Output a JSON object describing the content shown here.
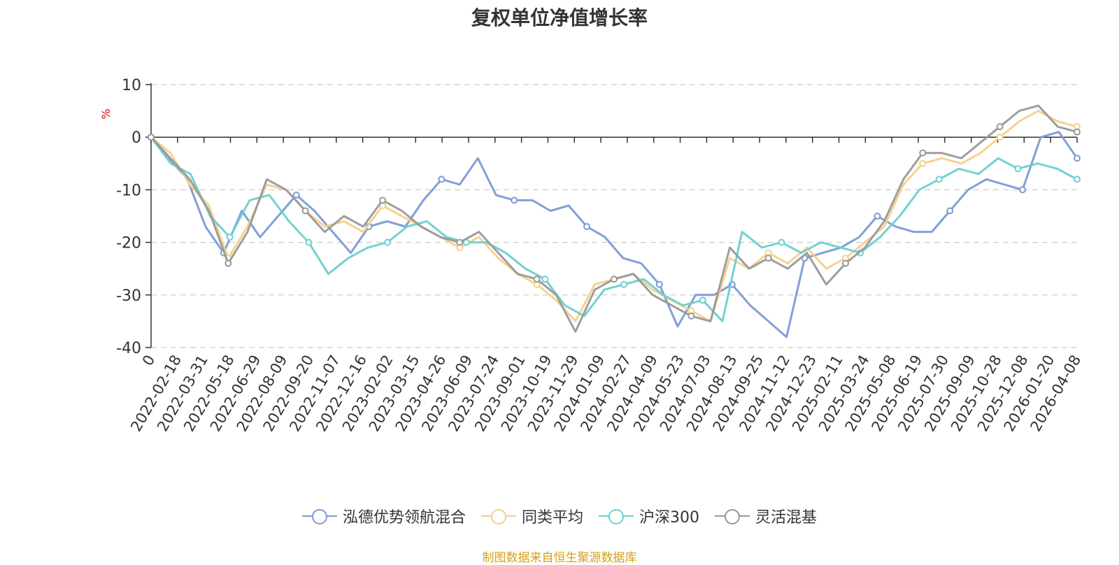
{
  "chart_data": {
    "type": "line",
    "title": "复权单位净值增长率",
    "ylabel": "%",
    "xlabel": "",
    "ylim": [
      -40,
      10
    ],
    "yticks": [
      10,
      0,
      -10,
      -20,
      -30,
      -40
    ],
    "grid": true,
    "legend_position": "bottom-center",
    "x_tick_labels": [
      "0",
      "2022-02-18",
      "2022-03-31",
      "2022-05-18",
      "2022-06-29",
      "2022-08-09",
      "2022-09-20",
      "2022-11-07",
      "2022-12-16",
      "2023-02-02",
      "2023-03-15",
      "2023-04-26",
      "2023-06-09",
      "2023-07-24",
      "2023-09-01",
      "2023-10-19",
      "2023-11-29",
      "2024-01-09",
      "2024-02-27",
      "2024-04-09",
      "2024-05-23",
      "2024-07-03",
      "2024-08-13",
      "2024-09-25",
      "2024-11-12",
      "2024-12-23",
      "2025-02-11",
      "2025-03-24",
      "2025-05-08",
      "2025-06-19",
      "2025-07-30",
      "2025-09-09",
      "2025-10-28",
      "2025-12-08",
      "2026-01-20",
      "2026-04-08"
    ],
    "series": [
      {
        "name": "泓德优势领航混合",
        "color": "#7b9bd4",
        "values": [
          0,
          -4,
          -8,
          -17,
          -22,
          -14,
          -19,
          -15,
          -11,
          -14,
          -18,
          -22,
          -17,
          -16,
          -17,
          -12,
          -8,
          -9,
          -4,
          -11,
          -12,
          -12,
          -14,
          -13,
          -17,
          -19,
          -23,
          -24,
          -28,
          -36,
          -30,
          -30,
          -28,
          -32,
          -35,
          -38,
          -23,
          -22,
          -21,
          -19,
          -15,
          -17,
          -18,
          -18,
          -14,
          -10,
          -8,
          -9,
          -10,
          0,
          1,
          -4
        ]
      },
      {
        "name": "同类平均",
        "color": "#f5d08a",
        "values": [
          0,
          -3,
          -9,
          -13,
          -23,
          -17,
          -9,
          -10,
          -14,
          -17,
          -16,
          -18,
          -13,
          -15,
          -17,
          -19,
          -21,
          -19,
          -23,
          -26,
          -28,
          -31,
          -35,
          -28,
          -27,
          -26,
          -29,
          -31,
          -33,
          -35,
          -23,
          -25,
          -22,
          -24,
          -21,
          -25,
          -23,
          -20,
          -17,
          -9,
          -5,
          -4,
          -5,
          -3,
          0,
          3,
          5,
          3,
          2
        ]
      },
      {
        "name": "沪深300",
        "color": "#6dcfcf",
        "values": [
          0,
          -5,
          -7,
          -15,
          -19,
          -12,
          -11,
          -16,
          -20,
          -26,
          -23,
          -21,
          -20,
          -17,
          -16,
          -19,
          -20,
          -20,
          -22,
          -25,
          -27,
          -32,
          -34,
          -29,
          -28,
          -27,
          -30,
          -32,
          -31,
          -35,
          -18,
          -21,
          -20,
          -22,
          -20,
          -21,
          -22,
          -19,
          -15,
          -10,
          -8,
          -6,
          -7,
          -4,
          -6,
          -5,
          -6,
          -8
        ]
      },
      {
        "name": "灵活混基",
        "color": "#999999",
        "values": [
          0,
          -4,
          -8,
          -14,
          -24,
          -18,
          -8,
          -10,
          -14,
          -18,
          -15,
          -17,
          -12,
          -14,
          -17,
          -19,
          -20,
          -18,
          -22,
          -26,
          -27,
          -30,
          -37,
          -29,
          -27,
          -26,
          -30,
          -32,
          -34,
          -35,
          -21,
          -25,
          -23,
          -25,
          -22,
          -28,
          -24,
          -21,
          -16,
          -8,
          -3,
          -3,
          -4,
          -1,
          2,
          5,
          6,
          2,
          1
        ]
      }
    ]
  },
  "legend": {
    "items": [
      {
        "label": "泓德优势领航混合",
        "color": "#7b9bd4"
      },
      {
        "label": "同类平均",
        "color": "#f5d08a"
      },
      {
        "label": "沪深300",
        "color": "#6dcfcf"
      },
      {
        "label": "灵活混基",
        "color": "#999999"
      }
    ]
  },
  "source_note": "制图数据来自恒生聚源数据库"
}
